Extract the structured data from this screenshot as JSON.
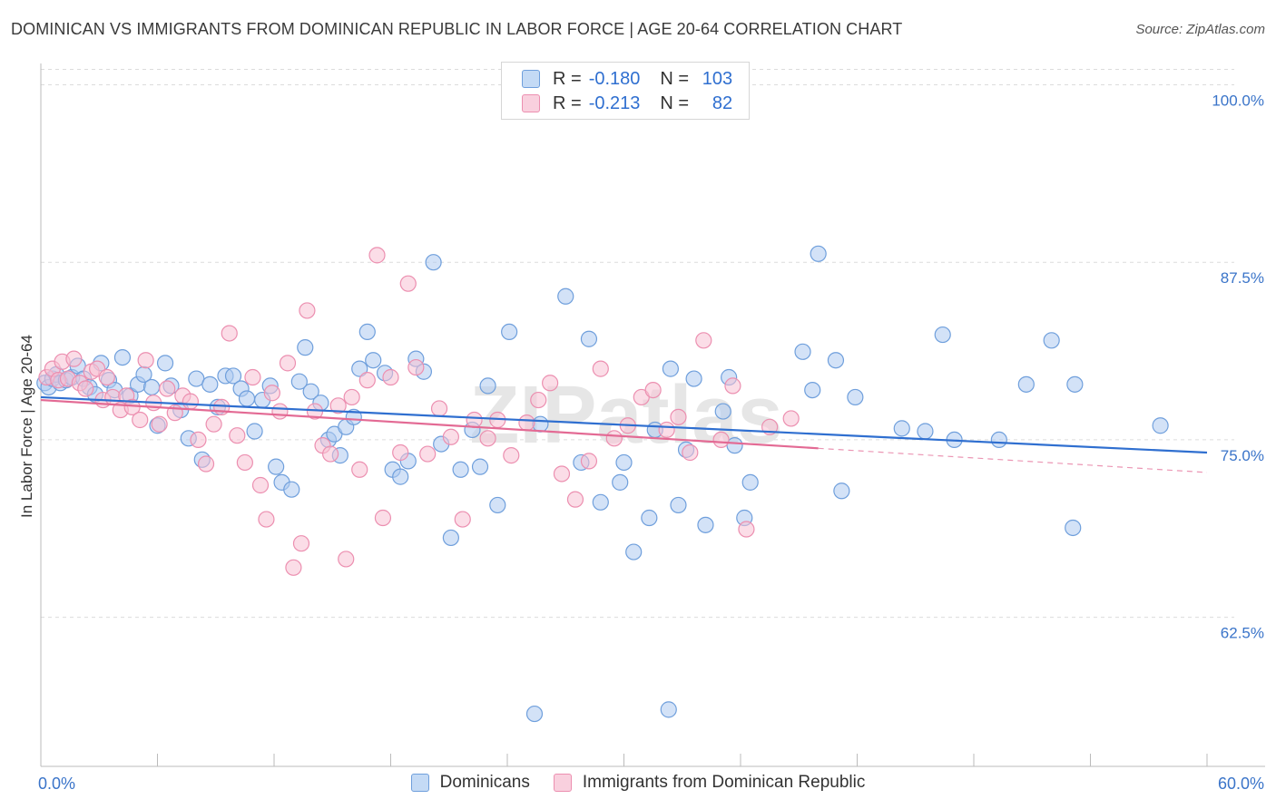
{
  "title": "DOMINICAN VS IMMIGRANTS FROM DOMINICAN REPUBLIC IN LABOR FORCE | AGE 20-64 CORRELATION CHART",
  "source": "Source: ZipAtlas.com",
  "watermark": "ZIPatlas",
  "legend_top": {
    "rows": [
      {
        "r_label": "R =",
        "r_value": "-0.180",
        "n_label": "N =",
        "n_value": "103"
      },
      {
        "r_label": "R =",
        "r_value": "-0.213",
        "n_label": "N =",
        "n_value": "82"
      }
    ]
  },
  "legend_bottom": {
    "items": [
      "Dominicans",
      "Immigrants from Dominican Republic"
    ]
  },
  "colors": {
    "blue_fill": "#aecbf0",
    "blue_stroke": "#6f9fdc",
    "blue_line": "#2f6fd0",
    "pink_fill": "#f7c1d3",
    "pink_stroke": "#ec8fb0",
    "pink_line": "#e36a94",
    "tick_label": "#3a74c9",
    "grid": "#dcdcdc"
  },
  "chart_data": {
    "type": "scatter",
    "xlabel": "In Labor Force | Age 20-64",
    "ylabel": "In Labor Force | Age 20-64",
    "xlim": [
      0,
      60
    ],
    "ylim": [
      52,
      101.5
    ],
    "x_tick_labels": [
      "0.0%",
      "60.0%"
    ],
    "y_ticks": [
      62.5,
      75.0,
      87.5,
      100.0
    ],
    "y_tick_labels": [
      "62.5%",
      "75.0%",
      "87.5%",
      "100.0%"
    ],
    "grid": true,
    "series": [
      {
        "name": "Dominicans",
        "trend": {
          "x0": 0,
          "y0": 78.0,
          "x1": 60,
          "y1": 74.1
        },
        "points": [
          [
            0.2,
            79.0
          ],
          [
            0.4,
            78.7
          ],
          [
            0.6,
            79.3
          ],
          [
            0.8,
            79.6
          ],
          [
            1.0,
            79.0
          ],
          [
            1.3,
            79.2
          ],
          [
            1.6,
            79.4
          ],
          [
            1.9,
            80.2
          ],
          [
            2.2,
            79.3
          ],
          [
            2.5,
            78.7
          ],
          [
            2.8,
            78.2
          ],
          [
            3.1,
            80.4
          ],
          [
            3.5,
            79.2
          ],
          [
            3.8,
            78.5
          ],
          [
            4.2,
            80.8
          ],
          [
            4.6,
            78.1
          ],
          [
            5.0,
            78.9
          ],
          [
            5.3,
            79.6
          ],
          [
            5.7,
            78.7
          ],
          [
            6.0,
            76.0
          ],
          [
            6.4,
            80.4
          ],
          [
            6.7,
            78.8
          ],
          [
            7.2,
            77.1
          ],
          [
            7.6,
            75.1
          ],
          [
            8.0,
            79.3
          ],
          [
            8.3,
            73.6
          ],
          [
            8.7,
            78.9
          ],
          [
            9.1,
            77.3
          ],
          [
            9.5,
            79.5
          ],
          [
            9.9,
            79.5
          ],
          [
            10.3,
            78.6
          ],
          [
            10.6,
            77.9
          ],
          [
            11.0,
            75.6
          ],
          [
            11.4,
            77.8
          ],
          [
            11.8,
            78.8
          ],
          [
            12.1,
            73.1
          ],
          [
            12.4,
            72.0
          ],
          [
            12.9,
            71.5
          ],
          [
            13.3,
            79.1
          ],
          [
            13.6,
            81.5
          ],
          [
            13.9,
            78.4
          ],
          [
            14.4,
            77.6
          ],
          [
            14.8,
            75.0
          ],
          [
            15.1,
            75.4
          ],
          [
            15.4,
            73.9
          ],
          [
            15.7,
            75.9
          ],
          [
            16.1,
            76.6
          ],
          [
            16.4,
            80.0
          ],
          [
            16.8,
            82.6
          ],
          [
            17.1,
            80.6
          ],
          [
            17.7,
            79.7
          ],
          [
            18.1,
            72.9
          ],
          [
            18.5,
            72.4
          ],
          [
            18.9,
            73.5
          ],
          [
            19.3,
            80.7
          ],
          [
            19.7,
            79.8
          ],
          [
            20.2,
            87.5
          ],
          [
            20.6,
            74.7
          ],
          [
            21.1,
            68.1
          ],
          [
            21.6,
            72.9
          ],
          [
            22.2,
            75.7
          ],
          [
            22.6,
            73.1
          ],
          [
            23.0,
            78.8
          ],
          [
            23.5,
            70.4
          ],
          [
            24.1,
            82.6
          ],
          [
            25.0,
            100.0
          ],
          [
            25.7,
            76.1
          ],
          [
            27.0,
            85.1
          ],
          [
            27.8,
            73.4
          ],
          [
            28.2,
            82.1
          ],
          [
            28.8,
            70.6
          ],
          [
            29.8,
            72.0
          ],
          [
            30.5,
            67.1
          ],
          [
            30.0,
            73.4
          ],
          [
            31.3,
            69.5
          ],
          [
            31.6,
            75.7
          ],
          [
            32.4,
            80.0
          ],
          [
            32.8,
            70.4
          ],
          [
            33.2,
            74.3
          ],
          [
            33.6,
            79.3
          ],
          [
            34.2,
            69.0
          ],
          [
            35.1,
            77.0
          ],
          [
            35.4,
            79.4
          ],
          [
            35.7,
            74.6
          ],
          [
            36.2,
            69.5
          ],
          [
            36.5,
            72.0
          ],
          [
            39.2,
            81.2
          ],
          [
            39.7,
            78.5
          ],
          [
            40.0,
            88.1
          ],
          [
            40.9,
            80.6
          ],
          [
            41.2,
            71.4
          ],
          [
            41.9,
            78.0
          ],
          [
            44.3,
            75.8
          ],
          [
            45.5,
            75.6
          ],
          [
            46.4,
            82.4
          ],
          [
            47.0,
            75.0
          ],
          [
            49.3,
            75.0
          ],
          [
            50.7,
            78.9
          ],
          [
            52.0,
            82.0
          ],
          [
            53.1,
            68.8
          ],
          [
            53.2,
            78.9
          ],
          [
            57.6,
            76.0
          ],
          [
            32.3,
            56.0
          ],
          [
            25.4,
            55.7
          ]
        ]
      },
      {
        "name": "Immigrants from Dominican Republic",
        "trend": {
          "x0": 0,
          "y0": 77.8,
          "x1": 40,
          "y1": 74.4,
          "dash_x1": 60,
          "dash_y1": 72.7
        },
        "points": [
          [
            0.3,
            79.4
          ],
          [
            0.6,
            80.0
          ],
          [
            0.9,
            79.2
          ],
          [
            1.1,
            80.5
          ],
          [
            1.4,
            79.3
          ],
          [
            1.7,
            80.7
          ],
          [
            2.0,
            79.0
          ],
          [
            2.3,
            78.6
          ],
          [
            2.6,
            79.8
          ],
          [
            2.9,
            80.0
          ],
          [
            3.2,
            77.8
          ],
          [
            3.4,
            79.4
          ],
          [
            3.7,
            78.0
          ],
          [
            4.1,
            77.1
          ],
          [
            4.4,
            78.1
          ],
          [
            4.7,
            77.3
          ],
          [
            5.1,
            76.4
          ],
          [
            5.4,
            80.6
          ],
          [
            5.8,
            77.6
          ],
          [
            6.1,
            76.1
          ],
          [
            6.5,
            78.6
          ],
          [
            6.9,
            76.9
          ],
          [
            7.3,
            78.1
          ],
          [
            7.7,
            77.7
          ],
          [
            8.1,
            75.0
          ],
          [
            8.5,
            73.3
          ],
          [
            8.9,
            76.1
          ],
          [
            9.3,
            77.3
          ],
          [
            9.7,
            82.5
          ],
          [
            10.1,
            75.3
          ],
          [
            10.5,
            73.4
          ],
          [
            10.9,
            79.4
          ],
          [
            11.3,
            71.8
          ],
          [
            11.6,
            69.4
          ],
          [
            11.9,
            78.3
          ],
          [
            12.3,
            77.0
          ],
          [
            12.7,
            80.4
          ],
          [
            13.0,
            66.0
          ],
          [
            13.4,
            67.7
          ],
          [
            13.7,
            84.1
          ],
          [
            14.1,
            77.0
          ],
          [
            14.5,
            74.6
          ],
          [
            14.9,
            74.0
          ],
          [
            15.3,
            77.4
          ],
          [
            15.7,
            66.6
          ],
          [
            16.0,
            78.0
          ],
          [
            16.4,
            72.9
          ],
          [
            16.8,
            79.2
          ],
          [
            17.3,
            88.0
          ],
          [
            17.6,
            69.5
          ],
          [
            18.0,
            79.4
          ],
          [
            18.5,
            74.1
          ],
          [
            18.9,
            86.0
          ],
          [
            19.3,
            80.1
          ],
          [
            19.9,
            74.0
          ],
          [
            20.5,
            77.2
          ],
          [
            21.1,
            75.2
          ],
          [
            21.7,
            69.4
          ],
          [
            22.3,
            76.4
          ],
          [
            23.0,
            75.1
          ],
          [
            23.5,
            76.4
          ],
          [
            24.2,
            73.9
          ],
          [
            25.0,
            76.2
          ],
          [
            25.6,
            77.8
          ],
          [
            26.2,
            79.0
          ],
          [
            26.8,
            72.6
          ],
          [
            27.5,
            70.8
          ],
          [
            28.2,
            73.5
          ],
          [
            28.8,
            80.0
          ],
          [
            29.5,
            75.1
          ],
          [
            30.2,
            76.0
          ],
          [
            30.9,
            78.0
          ],
          [
            31.5,
            78.5
          ],
          [
            32.2,
            75.7
          ],
          [
            32.8,
            76.6
          ],
          [
            33.4,
            74.1
          ],
          [
            34.1,
            82.0
          ],
          [
            35.0,
            75.0
          ],
          [
            35.6,
            78.8
          ],
          [
            36.3,
            68.7
          ],
          [
            37.5,
            75.9
          ],
          [
            38.6,
            76.5
          ]
        ]
      }
    ]
  }
}
